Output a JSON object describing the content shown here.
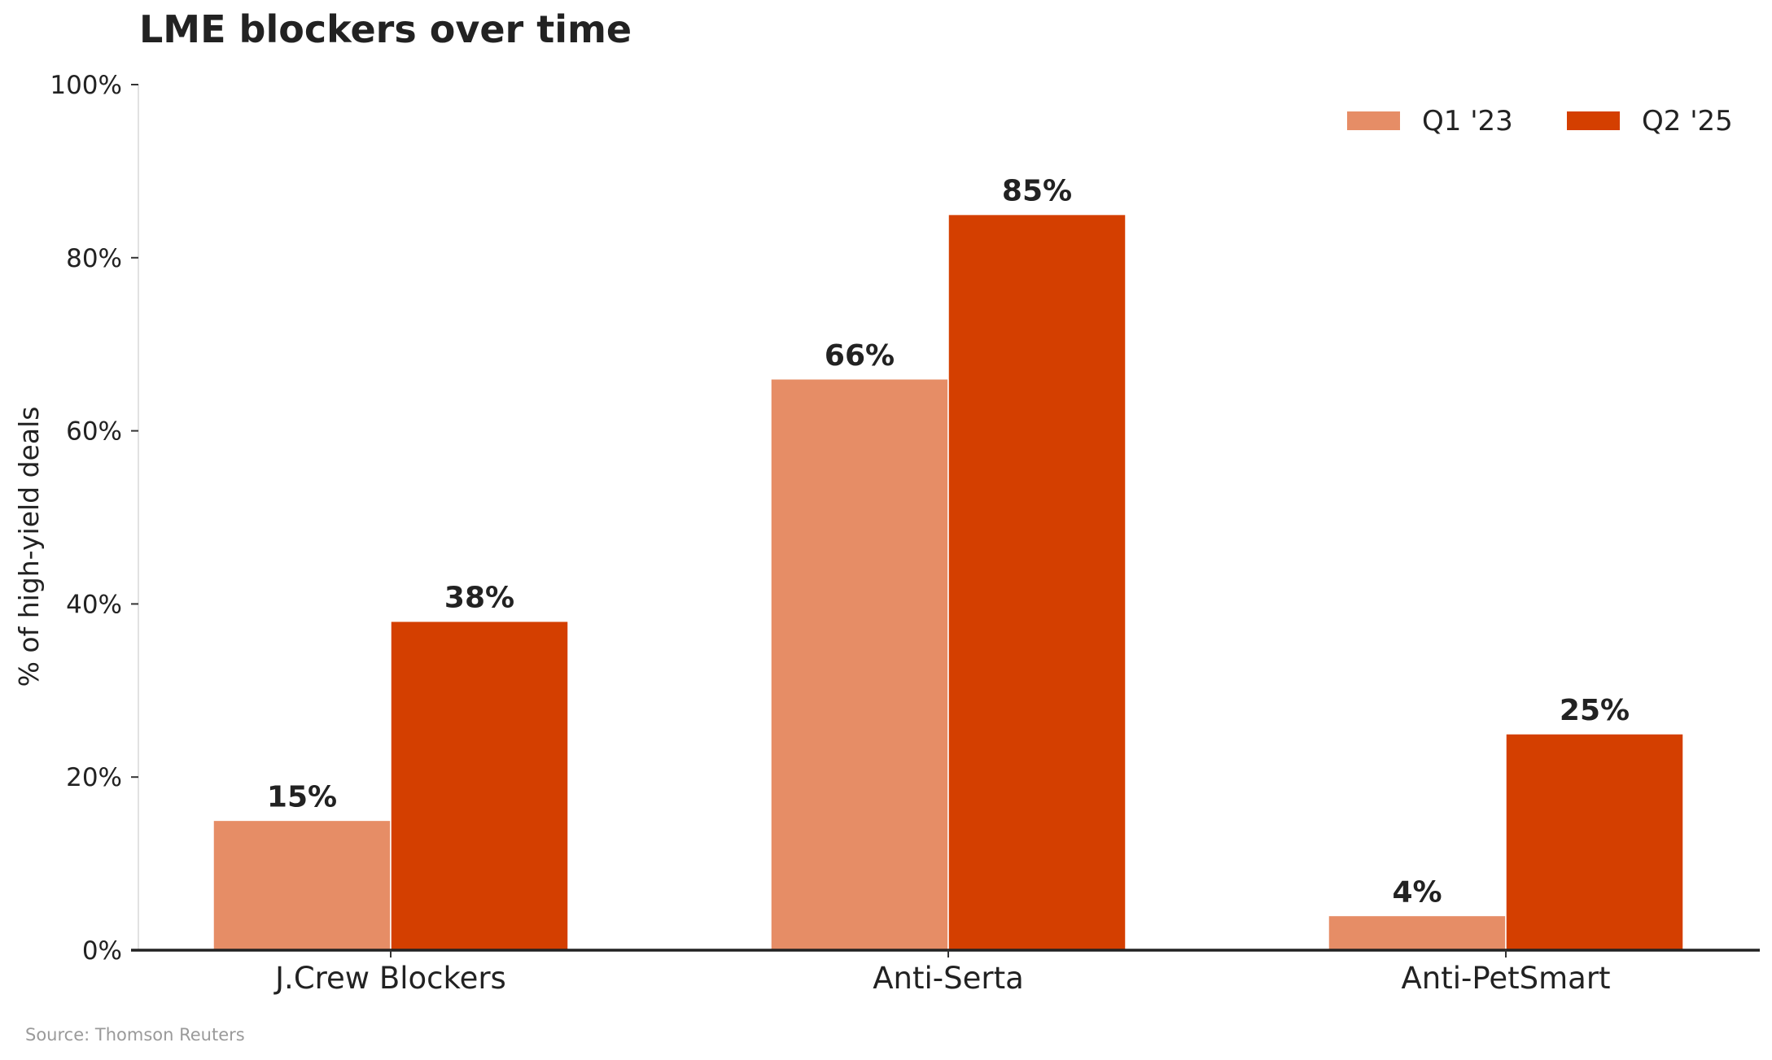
{
  "chart_data": {
    "type": "bar",
    "title": "LME blockers over time",
    "ylabel": "% of high-yield deals",
    "xlabel": "",
    "categories": [
      "J.Crew Blockers",
      "Anti-Serta",
      "Anti-PetSmart"
    ],
    "series": [
      {
        "name": "Q1 '23",
        "values": [
          15,
          66,
          4
        ],
        "color": "#E68D66"
      },
      {
        "name": "Q2 '25",
        "values": [
          38,
          85,
          25
        ],
        "color": "#D43F00"
      }
    ],
    "value_labels": [
      [
        "15%",
        "66%",
        "4%"
      ],
      [
        "38%",
        "85%",
        "25%"
      ]
    ],
    "ylim": [
      0,
      100
    ],
    "yticks": [
      0,
      20,
      40,
      60,
      80,
      100
    ],
    "ytick_labels": [
      "0%",
      "20%",
      "40%",
      "60%",
      "80%",
      "100%"
    ],
    "grid": false,
    "legend_position": "top-right",
    "source": "Source: Thomson Reuters"
  }
}
